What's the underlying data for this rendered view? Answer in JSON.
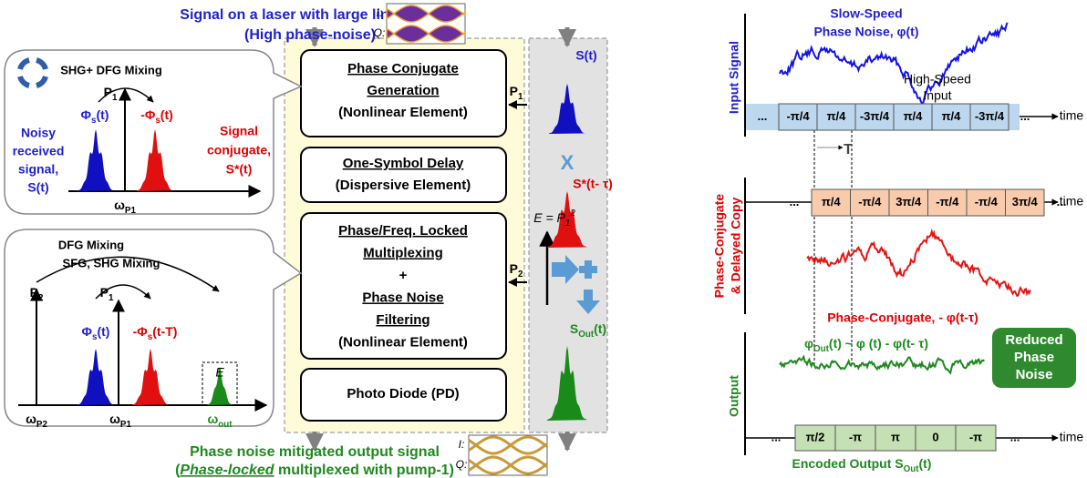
{
  "header": {
    "title_lines": [
      "Signal on a laser with large line-width",
      "(High phase-noise)"
    ]
  },
  "eye_top": {
    "i": "I:",
    "q": "Q:"
  },
  "eye_bottom": {
    "i": "I:",
    "q": "Q:"
  },
  "bubble1": {
    "mixing": "SHG+ DFG Mixing",
    "pump": {
      "text": "P",
      "sub": "1"
    },
    "signal": {
      "text": "Φ",
      "sub": "s",
      "rest": "(t)"
    },
    "conjugate": {
      "text": "-Φ",
      "sub": "s",
      "rest": "(t)"
    },
    "left_lines": [
      "Noisy",
      "received",
      "signal,",
      "S(t)"
    ],
    "right_lines": [
      "Signal",
      "conjugate,",
      "S*(t)"
    ],
    "omega": {
      "text": "ω",
      "sub": "P1"
    }
  },
  "bubble2": {
    "dfg": "DFG Mixing",
    "sfg": "SFG, SHG Mixing",
    "pump2": {
      "text": "P",
      "sub": "2"
    },
    "pump1": {
      "text": "P",
      "sub": "1"
    },
    "signal": {
      "text": "Φ",
      "sub": "s",
      "rest": "(t)"
    },
    "conjugate": {
      "text": "-Φ",
      "sub": "s",
      "rest": "(t-T)"
    },
    "e": "E",
    "omega_p2": {
      "text": "ω",
      "sub": "P2"
    },
    "omega_p1": {
      "text": "ω",
      "sub": "P1"
    },
    "omega_out": {
      "text": "ω",
      "sub": "out"
    }
  },
  "blocks": [
    {
      "lines": [
        "Phase Conjugate",
        "Generation",
        "(Nonlinear Element)"
      ]
    },
    {
      "lines": [
        "One-Symbol Delay",
        "(Dispersive Element)"
      ]
    },
    {
      "lines": [
        "Phase/Freq. Locked",
        "Multiplexing",
        "+",
        "Phase Noise",
        "Filtering",
        "(Nonlinear Element)"
      ]
    },
    {
      "lines": [
        "Photo Diode (PD)"
      ]
    }
  ],
  "pump_inputs": [
    {
      "text": "P",
      "sub": "1"
    },
    {
      "text": "P",
      "sub": "2"
    }
  ],
  "process": {
    "s": "S(t)",
    "x": "X",
    "s_conj": "S*(t- τ)",
    "energy": {
      "text": "E = P",
      "sub": "1",
      "sup": "2"
    },
    "s_out": {
      "text": "S",
      "sub": "Out",
      "rest": "(t)"
    }
  },
  "footer": {
    "line1": "Phase noise mitigated output signal",
    "line2": [
      "(",
      "Phase-locked",
      " multiplexed with pump-1)"
    ]
  },
  "input_chart": {
    "noise_lines": [
      "Slow-Speed",
      "Phase Noise, φ(t)"
    ],
    "axis_label": "Input Signal",
    "speed_lines": [
      "High-Speed",
      "Input"
    ],
    "symbols": [
      "...",
      "-π/4",
      "π/4",
      "-3π/4",
      "π/4",
      "π/4",
      "-3π/4",
      "..."
    ],
    "time": "time",
    "period": "T"
  },
  "conj_chart": {
    "axis_lines": [
      "Phase-Conjugate",
      "& Delayed Copy"
    ],
    "symbols": [
      "...",
      "π/4",
      "-π/4",
      "3π/4",
      "-π/4",
      "-π/4",
      "3π/4",
      "..."
    ],
    "time": "time",
    "noise_label": "Phase-Conjugate, - φ(t-τ)"
  },
  "output_chart": {
    "axis_label": "Output",
    "formula": {
      "text": "φ",
      "sub": "Out",
      "rest": "(t) ~ φ (t) - φ(t- τ)"
    },
    "badge_lines": [
      "Reduced",
      "Phase",
      "Noise"
    ],
    "symbols": [
      "...",
      "π/2",
      "-π",
      "π",
      "0",
      "-π",
      "..."
    ],
    "time": "time",
    "encoded": {
      "text": "Encoded Output S",
      "sub": "Out",
      "rest": "(t)"
    }
  }
}
